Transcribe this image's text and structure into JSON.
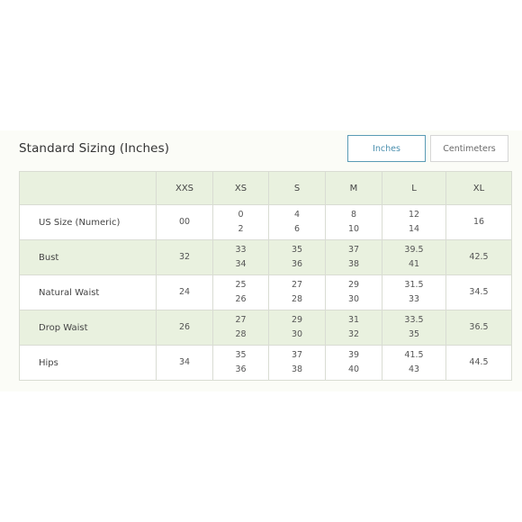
{
  "title": "Standard Sizing (Inches)",
  "units": {
    "inches": "Inches",
    "centimeters": "Centimeters",
    "selected": "Inches"
  },
  "columns": [
    "",
    "XXS",
    "XS",
    "S",
    "M",
    "L",
    "XL"
  ],
  "rows": [
    {
      "label": "US Size (Numeric)",
      "cells": [
        [
          "00"
        ],
        [
          "0",
          "2"
        ],
        [
          "4",
          "6"
        ],
        [
          "8",
          "10"
        ],
        [
          "12",
          "14"
        ],
        [
          "16"
        ]
      ]
    },
    {
      "label": "Bust",
      "cells": [
        [
          "32"
        ],
        [
          "33",
          "34"
        ],
        [
          "35",
          "36"
        ],
        [
          "37",
          "38"
        ],
        [
          "39.5",
          "41"
        ],
        [
          "42.5"
        ]
      ]
    },
    {
      "label": "Natural Waist",
      "cells": [
        [
          "24"
        ],
        [
          "25",
          "26"
        ],
        [
          "27",
          "28"
        ],
        [
          "29",
          "30"
        ],
        [
          "31.5",
          "33"
        ],
        [
          "34.5"
        ]
      ]
    },
    {
      "label": "Drop Waist",
      "cells": [
        [
          "26"
        ],
        [
          "27",
          "28"
        ],
        [
          "29",
          "30"
        ],
        [
          "31",
          "32"
        ],
        [
          "33.5",
          "35"
        ],
        [
          "36.5"
        ]
      ]
    },
    {
      "label": "Hips",
      "cells": [
        [
          "34"
        ],
        [
          "35",
          "36"
        ],
        [
          "37",
          "38"
        ],
        [
          "39",
          "40"
        ],
        [
          "41.5",
          "43"
        ],
        [
          "44.5"
        ]
      ]
    }
  ],
  "colors": {
    "header_bg": "#e9f1df",
    "selected_border": "#5a9bb5",
    "grid_line": "#d9dcd3"
  }
}
